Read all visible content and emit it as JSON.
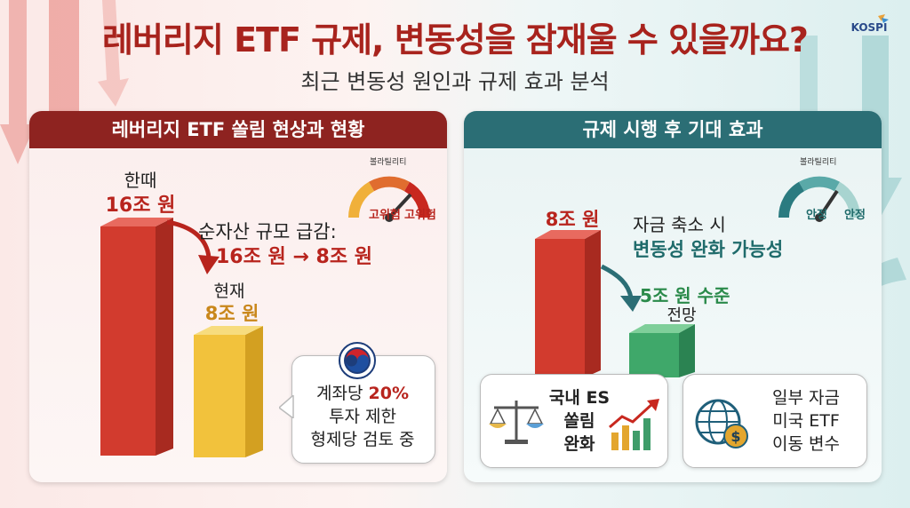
{
  "header": {
    "title": "레버리지 ETF 규제, 변동성을 잠재울 수 있을까요?",
    "subtitle": "최근 변동성 원인과 규제 효과 분석",
    "logo_text": "KOSPI"
  },
  "left_panel": {
    "title": "레버리지 ETF 쏠림 현상과 현황",
    "past_label": "한때",
    "past_value": "16조 원",
    "current_label": "현재",
    "current_value": "8조 원",
    "change_line1": "순자산 규모 급감:",
    "change_line2": "16조 원 → 8조 원",
    "gauge": {
      "title": "볼라틸리티",
      "left_label": "고위험",
      "right_label": "고위험"
    },
    "callout": {
      "line1_prefix": "계좌당 ",
      "line1_highlight": "20%",
      "line2": "투자 제한",
      "line3": "형제당 검토 중"
    }
  },
  "right_panel": {
    "title": "규제 시행 후 기대 효과",
    "current_value": "8조 원",
    "expected_value": "5조 원 수준",
    "expected_label": "전망",
    "effect_line1": "자금 축소 시",
    "effect_line2": "변동성 완화 가능성",
    "gauge": {
      "title": "볼라틸리티",
      "left_label": "안정",
      "right_label": "안정"
    },
    "card1": {
      "line1": "국내 ES",
      "line2": "쏠림",
      "line3": "완화"
    },
    "card2": {
      "line1": "일부 자금",
      "line2": "미국 ETF",
      "line3": "이동 변수"
    }
  },
  "colors": {
    "title_red": "#a8231d",
    "left_header": "#8e2320",
    "right_header": "#2b6e75",
    "bar_red": "#d23b2e",
    "bar_yellow": "#f2c23c",
    "bar_green": "#3fa86a"
  },
  "icons": [
    "kospi-logo-icon",
    "volatility-gauge-icon",
    "government-seal-icon",
    "balance-scale-icon",
    "rising-chart-icon",
    "globe-dollar-icon"
  ]
}
